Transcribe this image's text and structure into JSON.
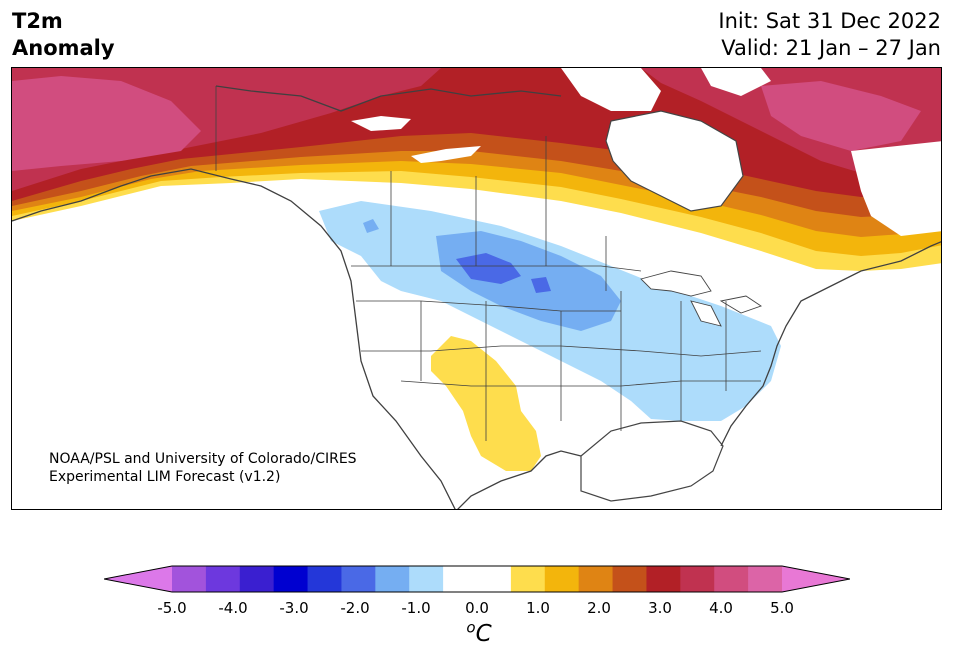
{
  "header": {
    "var_line1": "T2m",
    "var_line2": "Anomaly",
    "init": "Init: Sat 31 Dec 2022",
    "valid": "Valid: 21 Jan – 27 Jan"
  },
  "credit": {
    "line1": "NOAA/PSL and University of Colorado/CIRES",
    "line2": "Experimental LIM Forecast (v1.2)"
  },
  "colorbar": {
    "colors": [
      "#dc78e9",
      "#a253dc",
      "#6d38de",
      "#3a1fd0",
      "#0000d0",
      "#2437d9",
      "#4a69e6",
      "#75aef2",
      "#addcfb",
      "#ffffff",
      "#ffffff",
      "#fedd4d",
      "#f3b50c",
      "#df8414",
      "#c4511a",
      "#b22026",
      "#c03250",
      "#d14d7f",
      "#dc64a7",
      "#e878d5"
    ],
    "ticks": [
      "-5.0",
      "-4.0",
      "-3.0",
      "-2.0",
      "-1.0",
      "0.0",
      "1.0",
      "2.0",
      "3.0",
      "4.0",
      "5.0"
    ],
    "unit_sup": "o",
    "unit": "C"
  }
}
